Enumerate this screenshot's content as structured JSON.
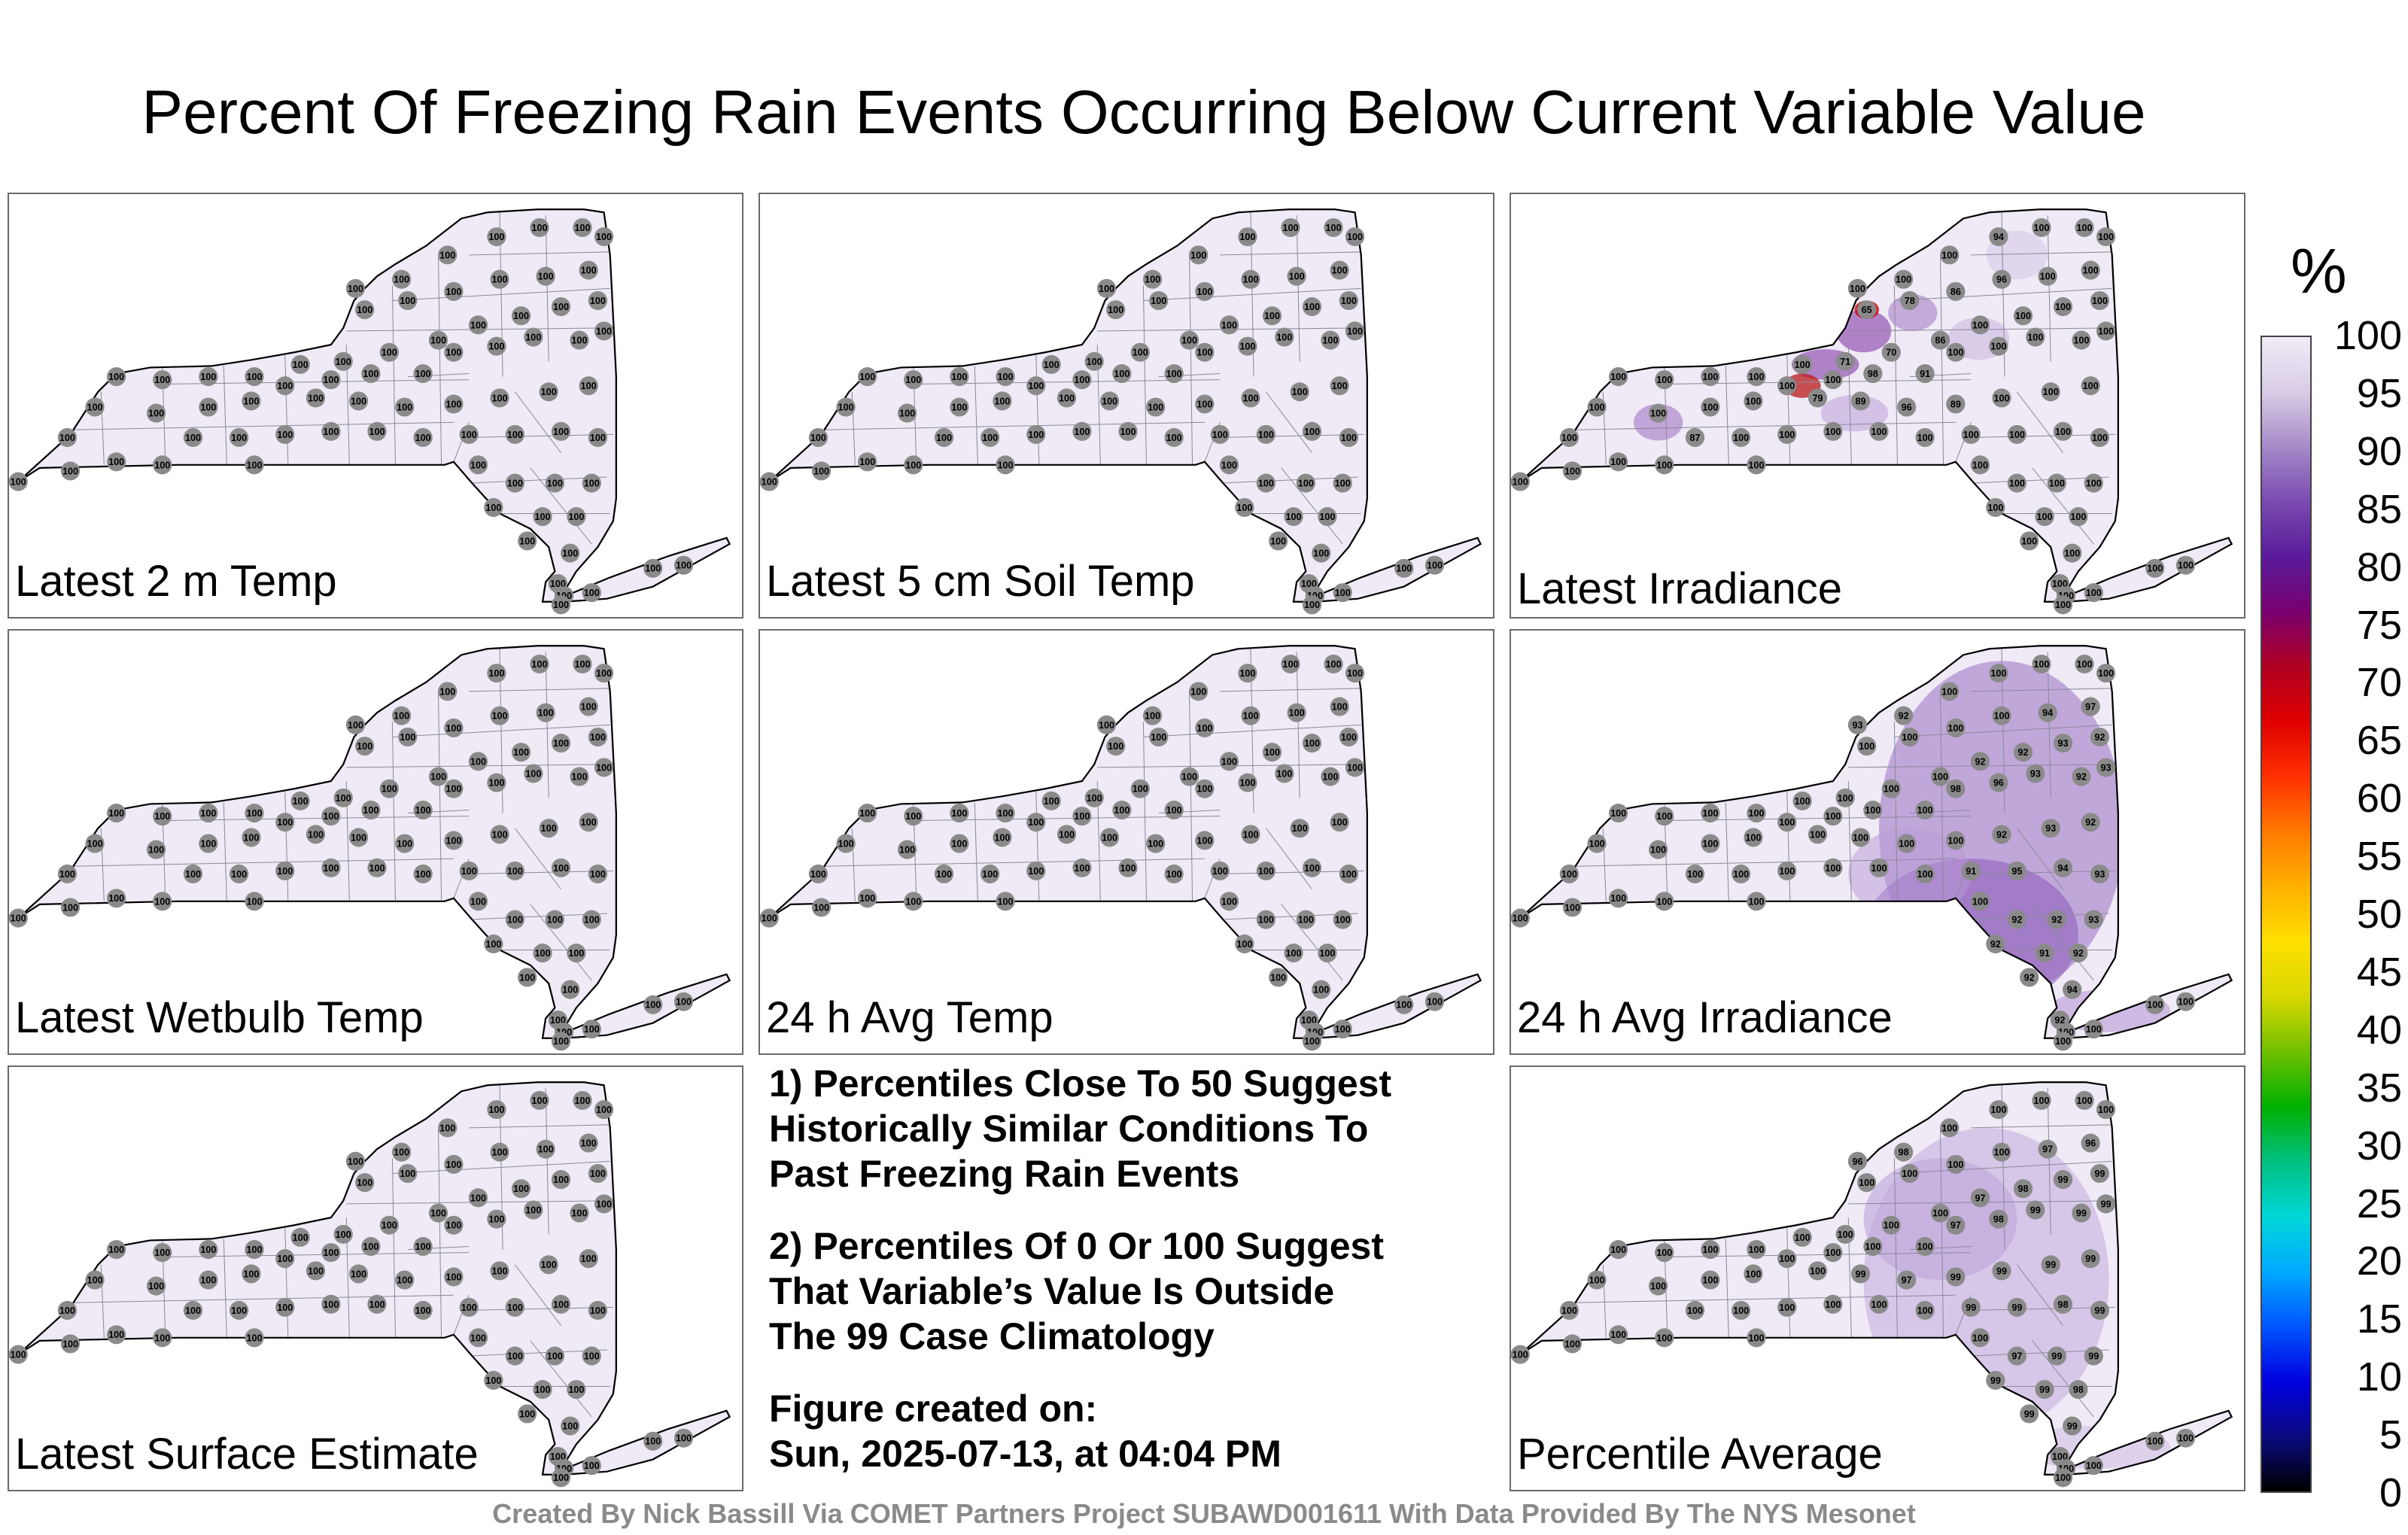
{
  "title": "Percent Of Freezing Rain Events Occurring Below Current Variable Value",
  "chart_data": {
    "type": "map-panels",
    "colorbar": {
      "unit": "%",
      "ticks": [
        "100",
        "95",
        "90",
        "85",
        "80",
        "75",
        "70",
        "65",
        "60",
        "55",
        "50",
        "45",
        "40",
        "35",
        "30",
        "25",
        "20",
        "15",
        "10",
        "5",
        "0"
      ],
      "range": [
        0,
        100
      ],
      "colors": [
        "#000000",
        "#0a0a80",
        "#0000e0",
        "#0055ff",
        "#00aaff",
        "#00d8d8",
        "#00c080",
        "#00b000",
        "#70c000",
        "#d8d800",
        "#ffe000",
        "#ffb000",
        "#ff7a00",
        "#ff3000",
        "#e00000",
        "#b00020",
        "#7a0070",
        "#5a1a9a",
        "#7a4ab0",
        "#a58ac8",
        "#d8cce6",
        "#f1ecf6"
      ]
    },
    "panels": [
      {
        "label": "Latest 2 m Temp",
        "field": 100,
        "stations": "all 100"
      },
      {
        "label": "Latest 5 cm Soil Temp",
        "field": 100,
        "stations": "all 100"
      },
      {
        "label": "Latest Irradiance",
        "station_values_shown": [
          100,
          71,
          70,
          79,
          89,
          98,
          91,
          100,
          65,
          78,
          86,
          86,
          96,
          94,
          87,
          96,
          89,
          100
        ]
      },
      {
        "label": "Latest Wetbulb Temp",
        "field": 100,
        "stations": "all 100"
      },
      {
        "label": "24 h Avg Temp",
        "field": 100,
        "stations": "all 100"
      },
      {
        "label": "24 h Avg Irradiance",
        "station_values_shown": [
          94,
          97,
          92,
          93,
          92,
          98,
          96,
          93,
          92,
          91,
          95,
          94,
          93,
          100
        ]
      },
      {
        "label": "Latest Surface Estimate",
        "field": 100,
        "stations": "all 100"
      },
      {
        "label": "Percentile Average",
        "station_values_shown": [
          99,
          98,
          97,
          96,
          100
        ]
      }
    ]
  },
  "notes": {
    "note1": [
      "1) Percentiles Close To 50 Suggest",
      "Historically Similar Conditions To",
      "Past Freezing Rain Events"
    ],
    "note2": [
      "2) Percentiles Of 0 Or 100 Suggest",
      "That Variable’s Value Is Outside",
      "The 99 Case Climatology"
    ],
    "created_label": "Figure created on:",
    "created_value": "Sun, 2025-07-13, at 04:04 PM"
  },
  "footer": "Created By Nick Bassill Via COMET Partners Project SUBAWD001611 With Data Provided By The NYS Mesonet"
}
